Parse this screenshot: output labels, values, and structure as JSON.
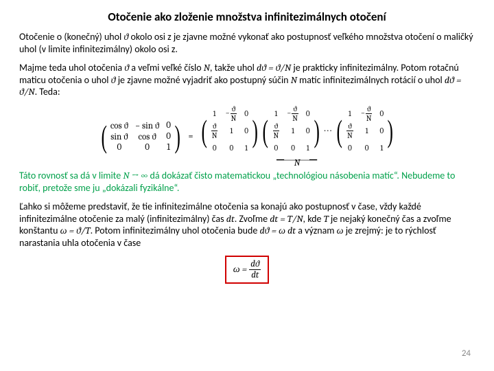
{
  "title": {
    "text": "Otočenie ako zloženie množstva infinitezimálnych otočení",
    "fontsize": 17
  },
  "colors": {
    "text": "#000000",
    "green": "#00a04a",
    "redbox": "#d00000",
    "pagenum": "#888888",
    "bg": "#ffffff"
  },
  "fontsize": {
    "body": 14,
    "math": 13,
    "small": 11,
    "title": 17
  },
  "p1": {
    "a": "Otočenie o (konečný) uhol ",
    "b": " okolo osi z je zjavne možné vykonať ako postupnosť veľkého množstva otočení o maličký uhol (v limite infinitezimálny) okolo osi z."
  },
  "p2": {
    "a": "Majme teda uhol otočenia ",
    "b": " a veľmi veľké číslo ",
    "c": ", takže uhol ",
    "d": " je prakticky infinitezimálny. Potom rotačnú maticu otočenia o uhol ",
    "e": " je zjavne možné vyjadriť ako postupný súčin ",
    "f": " matíc infinitezimálnych rotácií o uhol ",
    "g": ". Teda:"
  },
  "sym": {
    "theta": "ϑ",
    "N": "N",
    "dth_eq": "dϑ = ϑ/N",
    "dtheta": "dϑ",
    "omega_eq": "ω = ϑ/T",
    "dth_omega": "dϑ = ω dt",
    "dt_eq": "dt = T/N",
    "T": "T",
    "omega": "ω",
    "Ninf": "N → ∞"
  },
  "matrixL": {
    "r1c1": "cos ϑ",
    "r1c2": "− sin ϑ",
    "r1c3": "0",
    "r2c1": "sin ϑ",
    "r2c2": "cos ϑ",
    "r2c3": "0",
    "r3c1": "0",
    "r3c2": "0",
    "r3c3": "1"
  },
  "matrixInf": {
    "r1c1": "1",
    "r1c3": "0",
    "r2c2": "1",
    "r2c3": "0",
    "r3c1": "0",
    "r3c2": "0",
    "r3c3": "1",
    "frac_num": "ϑ",
    "frac_den": "N",
    "neg": "−"
  },
  "underbrace": {
    "label": "N"
  },
  "eq": {
    "equals": "=",
    "dots": "· · ·"
  },
  "p3": {
    "a": "Táto rovnosť sa dá v limite ",
    "b": " dá dokázať čisto matematickou „technológiou násobenia matíc“. Nebudeme to robiť, pretože sme ju „dokázali fyzikálne“."
  },
  "p4": {
    "a": "Ľahko si môžeme predstaviť, že tie infinitezimálne otočenia sa konajú ako postupnosť v čase, vždy každé infinitezimálne otočenie za malý (infinitezimálny) čas ",
    "b": ". Zvoľme ",
    "c": ", kde ",
    "d": " je nejaký konečný čas a zvoľme konštantu ",
    "e": ". Potom infinitezimálny uhol otočenia bude ",
    "f": " a význam ",
    "g": " je zrejmý: je to rýchlosť narastania uhla otočenia v čase"
  },
  "boxed": {
    "lhs": "ω =",
    "num": "dϑ",
    "den": "dt"
  },
  "page": "24"
}
